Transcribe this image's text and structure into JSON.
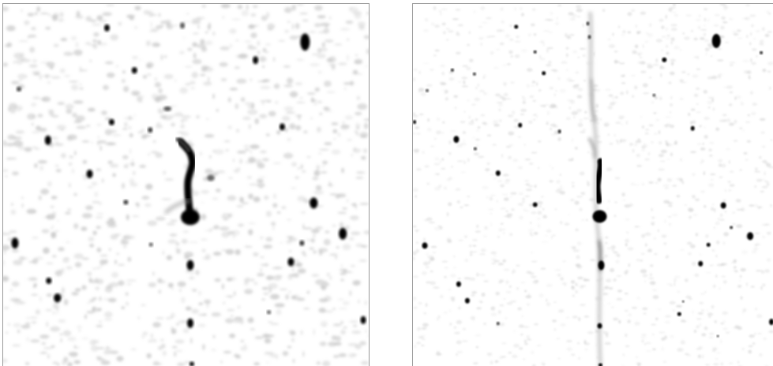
{
  "figure": {
    "panels": [
      {
        "id": "left",
        "smoothing": "coarse"
      },
      {
        "id": "right",
        "smoothing": "fine"
      }
    ],
    "colors": {
      "source": "#000000",
      "noise": "#bdbdbd",
      "background": "#ffffff",
      "frame": "#9a9a9a"
    }
  }
}
